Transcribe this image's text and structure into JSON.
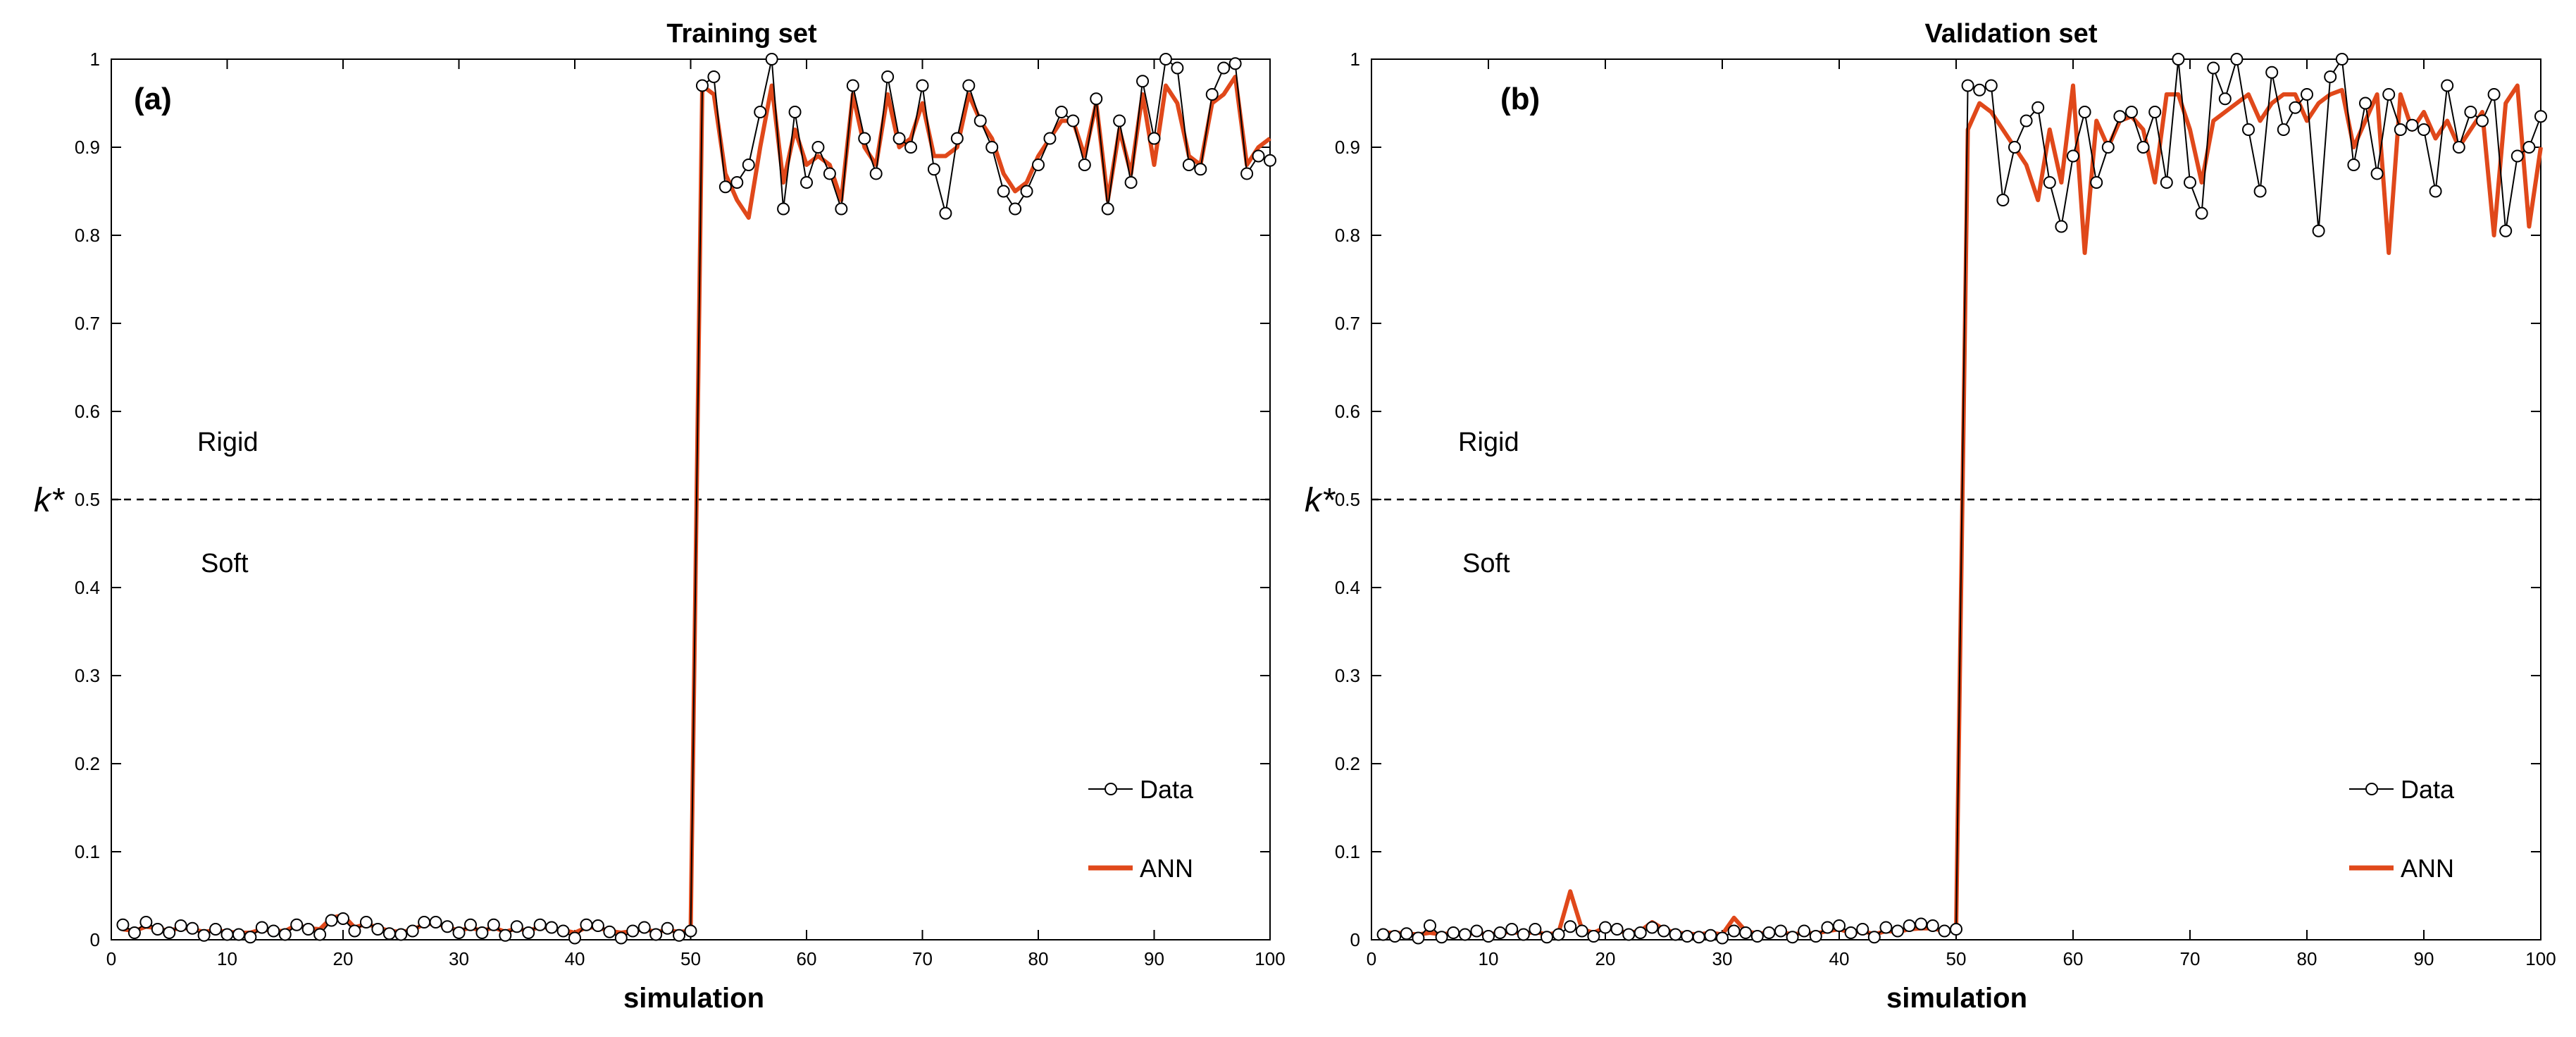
{
  "chart_data": [
    {
      "type": "line",
      "title": "Training set",
      "panel_label": "(a)",
      "xlabel": "simulation",
      "ylabel": "k*",
      "xlim": [
        0,
        100
      ],
      "ylim": [
        0,
        1
      ],
      "xticks": [
        0,
        10,
        20,
        30,
        40,
        50,
        60,
        70,
        80,
        90,
        100
      ],
      "yticks": [
        0,
        0.1,
        0.2,
        0.3,
        0.4,
        0.5,
        0.6,
        0.7,
        0.8,
        0.9,
        1
      ],
      "grid": false,
      "threshold": 0.5,
      "region_labels": {
        "upper": "Rigid",
        "lower": "Soft"
      },
      "legend": {
        "position": "bottom-right",
        "entries": [
          "Data",
          "ANN"
        ]
      },
      "series": [
        {
          "name": "Data",
          "color": "#000000",
          "marker": "circle",
          "x": [
            1,
            2,
            3,
            4,
            5,
            6,
            7,
            8,
            9,
            10,
            11,
            12,
            13,
            14,
            15,
            16,
            17,
            18,
            19,
            20,
            21,
            22,
            23,
            24,
            25,
            26,
            27,
            28,
            29,
            30,
            31,
            32,
            33,
            34,
            35,
            36,
            37,
            38,
            39,
            40,
            41,
            42,
            43,
            44,
            45,
            46,
            47,
            48,
            49,
            50,
            51,
            52,
            53,
            54,
            55,
            56,
            57,
            58,
            59,
            60,
            61,
            62,
            63,
            64,
            65,
            66,
            67,
            68,
            69,
            70,
            71,
            72,
            73,
            74,
            75,
            76,
            77,
            78,
            79,
            80,
            81,
            82,
            83,
            84,
            85,
            86,
            87,
            88,
            89,
            90,
            91,
            92,
            93,
            94,
            95,
            96,
            97,
            98,
            99,
            100
          ],
          "values": [
            0.017,
            0.008,
            0.02,
            0.012,
            0.008,
            0.016,
            0.013,
            0.005,
            0.012,
            0.006,
            0.006,
            0.003,
            0.014,
            0.01,
            0.006,
            0.017,
            0.012,
            0.006,
            0.022,
            0.024,
            0.01,
            0.02,
            0.012,
            0.007,
            0.006,
            0.01,
            0.02,
            0.02,
            0.015,
            0.008,
            0.017,
            0.008,
            0.017,
            0.005,
            0.015,
            0.008,
            0.017,
            0.014,
            0.01,
            0.002,
            0.017,
            0.016,
            0.009,
            0.002,
            0.01,
            0.014,
            0.006,
            0.013,
            0.005,
            0.01,
            0.97,
            0.98,
            0.855,
            0.86,
            0.88,
            0.94,
            1.0,
            0.83,
            0.94,
            0.86,
            0.9,
            0.87,
            0.83,
            0.97,
            0.91,
            0.87,
            0.98,
            0.91,
            0.9,
            0.97,
            0.875,
            0.825,
            0.91,
            0.97,
            0.93,
            0.9,
            0.85,
            0.83,
            0.85,
            0.88,
            0.91,
            0.94,
            0.93,
            0.88,
            0.955,
            0.83,
            0.93,
            0.86,
            0.975,
            0.91,
            1.0,
            0.99,
            0.88,
            0.875,
            0.96,
            0.99,
            0.995,
            0.87,
            0.89,
            0.885
          ]
        },
        {
          "name": "ANN",
          "color": "#E0481A",
          "marker": "none",
          "x": [
            1,
            2,
            3,
            4,
            5,
            6,
            7,
            8,
            9,
            10,
            11,
            12,
            13,
            14,
            15,
            16,
            17,
            18,
            19,
            20,
            21,
            22,
            23,
            24,
            25,
            26,
            27,
            28,
            29,
            30,
            31,
            32,
            33,
            34,
            35,
            36,
            37,
            38,
            39,
            40,
            41,
            42,
            43,
            44,
            45,
            46,
            47,
            48,
            49,
            50,
            51,
            52,
            53,
            54,
            55,
            56,
            57,
            58,
            59,
            60,
            61,
            62,
            63,
            64,
            65,
            66,
            67,
            68,
            69,
            70,
            71,
            72,
            73,
            74,
            75,
            76,
            77,
            78,
            79,
            80,
            81,
            82,
            83,
            84,
            85,
            86,
            87,
            88,
            89,
            90,
            91,
            92,
            93,
            94,
            95,
            96,
            97,
            98,
            99,
            100
          ],
          "values": [
            0.012,
            0.01,
            0.015,
            0.013,
            0.01,
            0.014,
            0.012,
            0.009,
            0.011,
            0.009,
            0.008,
            0.008,
            0.012,
            0.01,
            0.01,
            0.017,
            0.013,
            0.012,
            0.025,
            0.028,
            0.014,
            0.018,
            0.014,
            0.01,
            0.009,
            0.011,
            0.018,
            0.018,
            0.015,
            0.01,
            0.014,
            0.01,
            0.014,
            0.009,
            0.013,
            0.01,
            0.015,
            0.013,
            0.011,
            0.008,
            0.014,
            0.014,
            0.01,
            0.008,
            0.01,
            0.012,
            0.009,
            0.011,
            0.009,
            0.01,
            0.97,
            0.96,
            0.87,
            0.84,
            0.82,
            0.9,
            0.97,
            0.86,
            0.92,
            0.88,
            0.89,
            0.88,
            0.84,
            0.96,
            0.9,
            0.88,
            0.96,
            0.9,
            0.91,
            0.95,
            0.89,
            0.89,
            0.9,
            0.96,
            0.93,
            0.91,
            0.87,
            0.85,
            0.86,
            0.89,
            0.91,
            0.93,
            0.93,
            0.89,
            0.95,
            0.84,
            0.92,
            0.87,
            0.96,
            0.88,
            0.97,
            0.95,
            0.89,
            0.88,
            0.95,
            0.96,
            0.98,
            0.88,
            0.9,
            0.91
          ]
        }
      ]
    },
    {
      "type": "line",
      "title": "Validation set",
      "panel_label": "(b)",
      "xlabel": "simulation",
      "ylabel": "k*",
      "xlim": [
        0,
        100
      ],
      "ylim": [
        0,
        1
      ],
      "xticks": [
        0,
        10,
        20,
        30,
        40,
        50,
        60,
        70,
        80,
        90,
        100
      ],
      "yticks": [
        0,
        0.1,
        0.2,
        0.3,
        0.4,
        0.5,
        0.6,
        0.7,
        0.8,
        0.9,
        1
      ],
      "grid": false,
      "threshold": 0.5,
      "region_labels": {
        "upper": "Rigid",
        "lower": "Soft"
      },
      "legend": {
        "position": "bottom-right",
        "entries": [
          "Data",
          "ANN"
        ]
      },
      "series": [
        {
          "name": "Data",
          "color": "#000000",
          "marker": "circle",
          "x": [
            1,
            2,
            3,
            4,
            5,
            6,
            7,
            8,
            9,
            10,
            11,
            12,
            13,
            14,
            15,
            16,
            17,
            18,
            19,
            20,
            21,
            22,
            23,
            24,
            25,
            26,
            27,
            28,
            29,
            30,
            31,
            32,
            33,
            34,
            35,
            36,
            37,
            38,
            39,
            40,
            41,
            42,
            43,
            44,
            45,
            46,
            47,
            48,
            49,
            50,
            51,
            52,
            53,
            54,
            55,
            56,
            57,
            58,
            59,
            60,
            61,
            62,
            63,
            64,
            65,
            66,
            67,
            68,
            69,
            70,
            71,
            72,
            73,
            74,
            75,
            76,
            77,
            78,
            79,
            80,
            81,
            82,
            83,
            84,
            85,
            86,
            87,
            88,
            89,
            90,
            91,
            92,
            93,
            94,
            95,
            96,
            97,
            98,
            99,
            100
          ],
          "values": [
            0.006,
            0.004,
            0.007,
            0.002,
            0.016,
            0.003,
            0.008,
            0.006,
            0.01,
            0.004,
            0.008,
            0.012,
            0.006,
            0.012,
            0.003,
            0.006,
            0.015,
            0.01,
            0.004,
            0.014,
            0.012,
            0.006,
            0.008,
            0.014,
            0.01,
            0.006,
            0.004,
            0.003,
            0.005,
            0.002,
            0.01,
            0.008,
            0.004,
            0.008,
            0.01,
            0.003,
            0.01,
            0.004,
            0.014,
            0.016,
            0.008,
            0.012,
            0.003,
            0.014,
            0.01,
            0.016,
            0.018,
            0.016,
            0.01,
            0.012,
            0.97,
            0.965,
            0.97,
            0.84,
            0.9,
            0.93,
            0.945,
            0.86,
            0.81,
            0.89,
            0.94,
            0.86,
            0.9,
            0.935,
            0.94,
            0.9,
            0.94,
            0.86,
            1.0,
            0.86,
            0.825,
            0.99,
            0.955,
            1.0,
            0.92,
            0.85,
            0.985,
            0.92,
            0.945,
            0.96,
            0.805,
            0.98,
            1.0,
            0.88,
            0.95,
            0.87,
            0.96,
            0.92,
            0.925,
            0.92,
            0.85,
            0.97,
            0.9,
            0.94,
            0.93,
            0.96,
            0.805,
            0.89,
            0.9,
            0.935
          ]
        },
        {
          "name": "ANN",
          "color": "#E0481A",
          "marker": "none",
          "x": [
            1,
            2,
            3,
            4,
            5,
            6,
            7,
            8,
            9,
            10,
            11,
            12,
            13,
            14,
            15,
            16,
            17,
            18,
            19,
            20,
            21,
            22,
            23,
            24,
            25,
            26,
            27,
            28,
            29,
            30,
            31,
            32,
            33,
            34,
            35,
            36,
            37,
            38,
            39,
            40,
            41,
            42,
            43,
            44,
            45,
            46,
            47,
            48,
            49,
            50,
            51,
            52,
            53,
            54,
            55,
            56,
            57,
            58,
            59,
            60,
            61,
            62,
            63,
            64,
            65,
            66,
            67,
            68,
            69,
            70,
            71,
            72,
            73,
            74,
            75,
            76,
            77,
            78,
            79,
            80,
            81,
            82,
            83,
            84,
            85,
            86,
            87,
            88,
            89,
            90,
            91,
            92,
            93,
            94,
            95,
            96,
            97,
            98,
            99,
            100
          ],
          "values": [
            0.008,
            0.008,
            0.007,
            0.006,
            0.008,
            0.006,
            0.008,
            0.006,
            0.008,
            0.006,
            0.008,
            0.009,
            0.007,
            0.009,
            0.006,
            0.008,
            0.055,
            0.012,
            0.008,
            0.014,
            0.01,
            0.008,
            0.01,
            0.02,
            0.012,
            0.008,
            0.007,
            0.006,
            0.008,
            0.006,
            0.025,
            0.01,
            0.007,
            0.008,
            0.009,
            0.006,
            0.008,
            0.007,
            0.01,
            0.012,
            0.008,
            0.01,
            0.006,
            0.01,
            0.009,
            0.012,
            0.013,
            0.013,
            0.01,
            0.012,
            0.92,
            0.95,
            0.94,
            0.92,
            0.9,
            0.88,
            0.84,
            0.92,
            0.86,
            0.97,
            0.78,
            0.93,
            0.9,
            0.93,
            0.935,
            0.92,
            0.86,
            0.96,
            0.96,
            0.92,
            0.86,
            0.93,
            0.94,
            0.95,
            0.96,
            0.93,
            0.95,
            0.96,
            0.96,
            0.93,
            0.95,
            0.96,
            0.965,
            0.9,
            0.93,
            0.96,
            0.78,
            0.96,
            0.92,
            0.94,
            0.91,
            0.93,
            0.9,
            0.92,
            0.94,
            0.8,
            0.95,
            0.97,
            0.81,
            0.9
          ]
        }
      ]
    }
  ]
}
